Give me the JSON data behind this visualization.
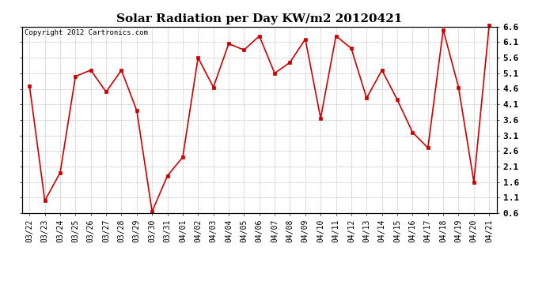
{
  "title": "Solar Radiation per Day KW/m2 20120421",
  "copyright": "Copyright 2012 Cartronics.com",
  "dates": [
    "03/22",
    "03/23",
    "03/24",
    "03/25",
    "03/26",
    "03/27",
    "03/28",
    "03/29",
    "03/30",
    "03/31",
    "04/01",
    "04/02",
    "04/03",
    "04/04",
    "04/05",
    "04/06",
    "04/07",
    "04/08",
    "04/09",
    "04/10",
    "04/11",
    "04/12",
    "04/13",
    "04/14",
    "04/15",
    "04/16",
    "04/17",
    "04/18",
    "04/19",
    "04/20",
    "04/21"
  ],
  "values": [
    4.7,
    1.0,
    1.9,
    5.0,
    5.2,
    4.5,
    5.2,
    3.9,
    0.65,
    1.8,
    2.4,
    5.6,
    4.65,
    6.05,
    5.85,
    6.3,
    5.1,
    5.45,
    6.2,
    3.65,
    6.3,
    5.9,
    4.3,
    5.2,
    4.25,
    3.2,
    2.7,
    6.5,
    4.65,
    1.6,
    6.65
  ],
  "line_color": "#cc0000",
  "marker": "s",
  "markersize": 2.5,
  "linewidth": 1.2,
  "ylim": [
    0.6,
    6.6
  ],
  "yticks": [
    0.6,
    1.1,
    1.6,
    2.1,
    2.6,
    3.1,
    3.6,
    4.1,
    4.6,
    5.1,
    5.6,
    6.1,
    6.6
  ],
  "bg_color": "#ffffff",
  "grid_color": "#bbbbbb",
  "title_fontsize": 11,
  "tick_fontsize": 7,
  "copyright_fontsize": 6.5
}
